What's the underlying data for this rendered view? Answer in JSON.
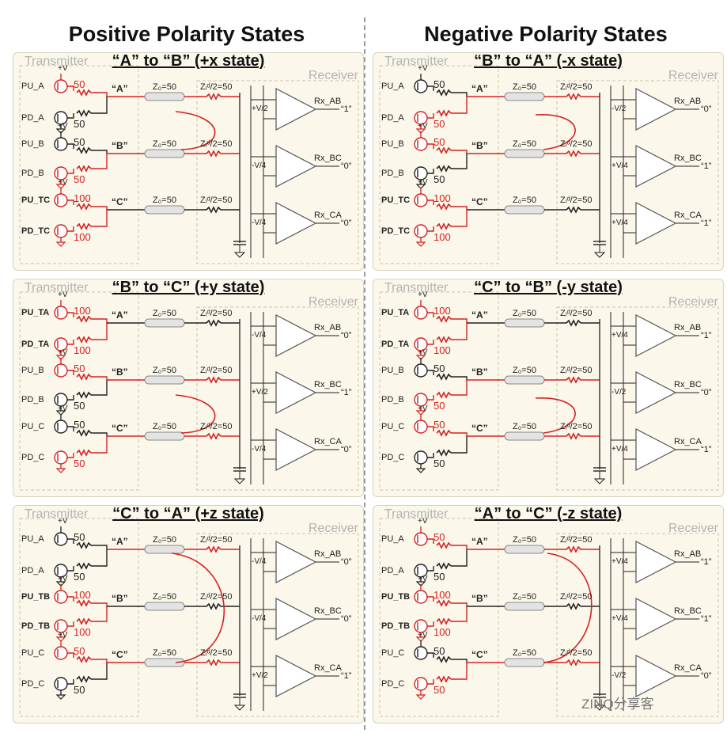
{
  "columns": [
    {
      "title": "Positive Polarity States",
      "panels": [
        {
          "state": "“A” to “B” (+x state)",
          "transmitter_label": "Transmitter",
          "receiver_label": "Receiver",
          "pull_labels": [
            "PU_A",
            "PD_A",
            "PU_B",
            "PD_B",
            "PU_TC",
            "PD_TC"
          ],
          "bold_pulls": [
            false,
            false,
            false,
            false,
            true,
            true
          ],
          "resistor_values": [
            "50",
            "50",
            "50",
            "50",
            "100",
            "100"
          ],
          "resistor_active": [
            true,
            false,
            false,
            true,
            true,
            true
          ],
          "wire_labels": [
            "“A”",
            "“B”",
            "“C”"
          ],
          "wire_active": [
            true,
            true,
            false
          ],
          "z0_label": "Z₀=50",
          "zid_label": "Zᵢᵈ/2=50",
          "ref_values": [
            "+V/2",
            "-V/4",
            "-V/4"
          ],
          "rx_labels": [
            "Rx_AB",
            "Rx_BC",
            "Rx_CA"
          ],
          "rx_outputs": [
            "“1”",
            "“0”",
            "“0”"
          ],
          "arrow": "A-B-down"
        },
        {
          "state": "“B” to “C” (+y state)",
          "transmitter_label": "Transmitter",
          "receiver_label": "Receiver",
          "pull_labels": [
            "PU_TA",
            "PD_TA",
            "PU_B",
            "PD_B",
            "PU_C",
            "PD_C"
          ],
          "bold_pulls": [
            true,
            true,
            false,
            false,
            false,
            false
          ],
          "resistor_values": [
            "100",
            "100",
            "50",
            "50",
            "50",
            "50"
          ],
          "resistor_active": [
            true,
            true,
            true,
            false,
            false,
            true
          ],
          "wire_labels": [
            "“A”",
            "“B”",
            "“C”"
          ],
          "wire_active": [
            false,
            true,
            true
          ],
          "z0_label": "Z₀=50",
          "zid_label": "Zᵢᵈ/2=50",
          "ref_values": [
            "-V/4",
            "+V/2",
            "-V/4"
          ],
          "rx_labels": [
            "Rx_AB",
            "Rx_BC",
            "Rx_CA"
          ],
          "rx_outputs": [
            "“0”",
            "“1”",
            "“0”"
          ],
          "arrow": "B-C-down"
        },
        {
          "state": "“C” to “A” (+z state)",
          "transmitter_label": "Transmitter",
          "receiver_label": "Receiver",
          "pull_labels": [
            "PU_A",
            "PD_A",
            "PU_TB",
            "PD_TB",
            "PU_C",
            "PD_C"
          ],
          "bold_pulls": [
            false,
            false,
            true,
            true,
            false,
            false
          ],
          "resistor_values": [
            "50",
            "50",
            "100",
            "100",
            "50",
            "50"
          ],
          "resistor_active": [
            false,
            false,
            true,
            true,
            true,
            false
          ],
          "wire_labels": [
            "“A”",
            "“B”",
            "“C”"
          ],
          "wire_active": [
            true,
            false,
            true
          ],
          "z0_label": "Z₀=50",
          "zid_label": "Zᵢᵈ/2=50",
          "ref_values": [
            "-V/4",
            "-V/4",
            "+V/2"
          ],
          "rx_labels": [
            "Rx_AB",
            "Rx_BC",
            "Rx_CA"
          ],
          "rx_outputs": [
            "“0”",
            "“0”",
            "“1”"
          ],
          "arrow": "C-A-up"
        }
      ]
    },
    {
      "title": "Negative Polarity States",
      "panels": [
        {
          "state": "“B” to “A” (-x state)",
          "transmitter_label": "Transmitter",
          "receiver_label": "Receiver",
          "pull_labels": [
            "PU_A",
            "PD_A",
            "PU_B",
            "PD_B",
            "PU_TC",
            "PD_TC"
          ],
          "bold_pulls": [
            false,
            false,
            false,
            false,
            true,
            true
          ],
          "resistor_values": [
            "50",
            "50",
            "50",
            "50",
            "100",
            "100"
          ],
          "resistor_active": [
            false,
            true,
            true,
            false,
            true,
            true
          ],
          "wire_labels": [
            "“A”",
            "“B”",
            "“C”"
          ],
          "wire_active": [
            true,
            true,
            false
          ],
          "z0_label": "Z₀=50",
          "zid_label": "Zᵢᵈ/2=50",
          "ref_values": [
            "-V/2",
            "+V/4",
            "+V/4"
          ],
          "rx_labels": [
            "Rx_AB",
            "Rx_BC",
            "Rx_CA"
          ],
          "rx_outputs": [
            "“0”",
            "“1”",
            "“1”"
          ],
          "arrow": "B-A-up"
        },
        {
          "state": "“C” to “B” (-y state)",
          "transmitter_label": "Transmitter",
          "receiver_label": "Receiver",
          "pull_labels": [
            "PU_TA",
            "PD_TA",
            "PU_B",
            "PD_B",
            "PU_C",
            "PD_C"
          ],
          "bold_pulls": [
            true,
            true,
            false,
            false,
            false,
            false
          ],
          "resistor_values": [
            "100",
            "100",
            "50",
            "50",
            "50",
            "50"
          ],
          "resistor_active": [
            true,
            true,
            false,
            true,
            true,
            false
          ],
          "wire_labels": [
            "“A”",
            "“B”",
            "“C”"
          ],
          "wire_active": [
            false,
            true,
            true
          ],
          "z0_label": "Z₀=50",
          "zid_label": "Zᵢᵈ/2=50",
          "ref_values": [
            "+V/4",
            "-V/2",
            "+V/4"
          ],
          "rx_labels": [
            "Rx_AB",
            "Rx_BC",
            "Rx_CA"
          ],
          "rx_outputs": [
            "“1”",
            "“0”",
            "“1”"
          ],
          "arrow": "C-B-up"
        },
        {
          "state": "“A” to “C” (-z state)",
          "transmitter_label": "Transmitter",
          "receiver_label": "Receiver",
          "pull_labels": [
            "PU_A",
            "PD_A",
            "PU_TB",
            "PD_TB",
            "PU_C",
            "PD_C"
          ],
          "bold_pulls": [
            false,
            false,
            true,
            true,
            false,
            false
          ],
          "resistor_values": [
            "50",
            "50",
            "100",
            "100",
            "50",
            "50"
          ],
          "resistor_active": [
            true,
            false,
            true,
            true,
            false,
            true
          ],
          "wire_labels": [
            "“A”",
            "“B”",
            "“C”"
          ],
          "wire_active": [
            true,
            false,
            true
          ],
          "z0_label": "Z₀=50",
          "zid_label": "Zᵢᵈ/2=50",
          "ref_values": [
            "+V/4",
            "+V/4",
            "-V/2"
          ],
          "rx_labels": [
            "Rx_AB",
            "Rx_BC",
            "Rx_CA"
          ],
          "rx_outputs": [
            "“1”",
            "“1”",
            "“0”"
          ],
          "arrow": "A-C-down"
        }
      ]
    }
  ],
  "supply_label": "+V",
  "watermark": "ZINQ分享客",
  "colors": {
    "active": "#d42222",
    "inactive": "#222222",
    "panel_bg": "#fbf7ea"
  }
}
